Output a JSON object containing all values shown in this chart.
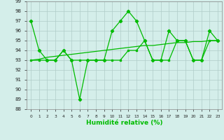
{
  "x": [
    0,
    1,
    2,
    3,
    4,
    5,
    6,
    7,
    8,
    9,
    10,
    11,
    12,
    13,
    14,
    15,
    16,
    17,
    18,
    19,
    20,
    21,
    22,
    23
  ],
  "y_main": [
    97,
    94,
    93,
    93,
    94,
    93,
    89,
    93,
    93,
    93,
    96,
    97,
    98,
    97,
    95,
    93,
    93,
    96,
    95,
    95,
    93,
    93,
    96,
    95
  ],
  "y_smooth": [
    93,
    93,
    93,
    93,
    94,
    93,
    93,
    93,
    93,
    93,
    93,
    93,
    94,
    94,
    95,
    93,
    93,
    93,
    95,
    95,
    93,
    93,
    95,
    95
  ],
  "y_trend": [
    93.0,
    93.1,
    93.3,
    93.4,
    93.5,
    93.6,
    93.7,
    93.8,
    93.9,
    94.0,
    94.1,
    94.2,
    94.3,
    94.4,
    94.5,
    94.5,
    94.6,
    94.7,
    94.8,
    94.8,
    94.9,
    94.9,
    95.0,
    95.0
  ],
  "bg_color": "#d4eeea",
  "grid_color": "#b0ccc8",
  "line_color": "#00bb00",
  "xlabel": "Humidité relative (%)",
  "ylim": [
    88,
    99
  ],
  "xlim": [
    -0.5,
    23.5
  ],
  "yticks": [
    88,
    89,
    90,
    91,
    92,
    93,
    94,
    95,
    96,
    97,
    98,
    99
  ],
  "xticks": [
    0,
    1,
    2,
    3,
    4,
    5,
    6,
    7,
    8,
    9,
    10,
    11,
    12,
    13,
    14,
    15,
    16,
    17,
    18,
    19,
    20,
    21,
    22,
    23
  ]
}
